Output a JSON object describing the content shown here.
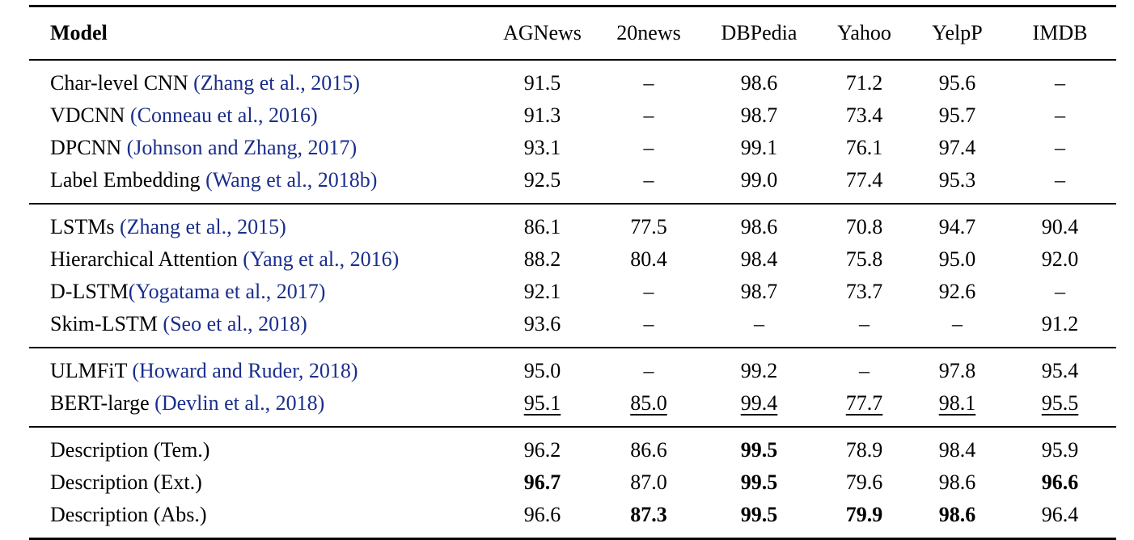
{
  "header": {
    "model": "Model",
    "columns": [
      "AGNews",
      "20news",
      "DBPedia",
      "Yahoo",
      "YelpP",
      "IMDB"
    ]
  },
  "groups": [
    {
      "rows": [
        {
          "name": "Char-level CNN ",
          "cite": "(Zhang et al., 2015)",
          "values": [
            "91.5",
            "–",
            "98.6",
            "71.2",
            "95.6",
            "–"
          ],
          "bold": [],
          "underline": []
        },
        {
          "name": "VDCNN ",
          "cite": "(Conneau et al., 2016)",
          "values": [
            "91.3",
            "–",
            "98.7",
            "73.4",
            "95.7",
            "–"
          ],
          "bold": [],
          "underline": []
        },
        {
          "name": "DPCNN ",
          "cite": "(Johnson and Zhang, 2017)",
          "values": [
            "93.1",
            "–",
            "99.1",
            "76.1",
            "97.4",
            "–"
          ],
          "bold": [],
          "underline": []
        },
        {
          "name": "Label Embedding ",
          "cite": "(Wang et al., 2018b)",
          "values": [
            "92.5",
            "–",
            "99.0",
            "77.4",
            "95.3",
            "–"
          ],
          "bold": [],
          "underline": []
        }
      ]
    },
    {
      "rows": [
        {
          "name": "LSTMs ",
          "cite": "(Zhang et al., 2015)",
          "values": [
            "86.1",
            "77.5",
            "98.6",
            "70.8",
            "94.7",
            "90.4"
          ],
          "bold": [],
          "underline": []
        },
        {
          "name": "Hierarchical Attention ",
          "cite": "(Yang et al., 2016)",
          "values": [
            "88.2",
            "80.4",
            "98.4",
            "75.8",
            "95.0",
            "92.0"
          ],
          "bold": [],
          "underline": []
        },
        {
          "name": "D-LSTM",
          "cite": "(Yogatama et al., 2017)",
          "values": [
            "92.1",
            "–",
            "98.7",
            "73.7",
            "92.6",
            "–"
          ],
          "bold": [],
          "underline": []
        },
        {
          "name": "Skim-LSTM ",
          "cite": "(Seo et al., 2018)",
          "values": [
            "93.6",
            "–",
            "–",
            "–",
            "–",
            "91.2"
          ],
          "bold": [],
          "underline": []
        }
      ]
    },
    {
      "rows": [
        {
          "name": "ULMFiT ",
          "cite": "(Howard and Ruder, 2018)",
          "values": [
            "95.0",
            "–",
            "99.2",
            "–",
            "97.8",
            "95.4"
          ],
          "bold": [],
          "underline": []
        },
        {
          "name": "BERT-large ",
          "cite": "(Devlin et al., 2018)",
          "values": [
            "95.1",
            "85.0",
            "99.4",
            "77.7",
            "98.1",
            "95.5"
          ],
          "bold": [],
          "underline": [
            0,
            1,
            2,
            3,
            4,
            5
          ]
        }
      ]
    },
    {
      "rows": [
        {
          "name": "Description (Tem.)",
          "cite": "",
          "values": [
            "96.2",
            "86.6",
            "99.5",
            "78.9",
            "98.4",
            "95.9"
          ],
          "bold": [
            2
          ],
          "underline": []
        },
        {
          "name": "Description (Ext.)",
          "cite": "",
          "values": [
            "96.7",
            "87.0",
            "99.5",
            "79.6",
            "98.6",
            "96.6"
          ],
          "bold": [
            0,
            2,
            5
          ],
          "underline": []
        },
        {
          "name": "Description (Abs.)",
          "cite": "",
          "values": [
            "96.6",
            "87.3",
            "99.5",
            "79.9",
            "98.6",
            "96.4"
          ],
          "bold": [
            1,
            2,
            3,
            4
          ],
          "underline": []
        }
      ]
    }
  ]
}
